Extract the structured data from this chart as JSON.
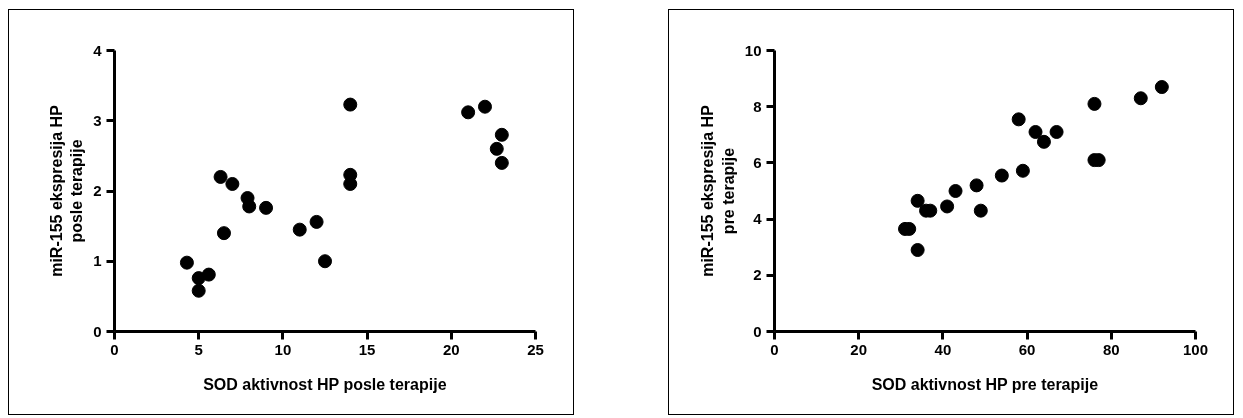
{
  "chart_data": [
    {
      "type": "scatter",
      "xlabel": "SOD aktivnost HP posle terapije",
      "ylabel": "miR-155 ekspresija HP\nposle terapije",
      "marker": "circle",
      "grid": false,
      "xlim": [
        0,
        25
      ],
      "ylim": [
        0,
        4
      ],
      "xticks": [
        0,
        5,
        10,
        15,
        20,
        25
      ],
      "yticks": [
        0,
        1,
        2,
        3,
        4
      ],
      "series": [
        {
          "color": "#000000",
          "x": [
            4.3,
            5,
            5.6,
            5,
            6.3,
            7,
            6.5,
            7.9,
            8,
            9,
            11,
            12,
            12.5,
            14,
            14,
            14,
            21,
            22,
            22.7,
            23,
            23
          ],
          "values": [
            0.98,
            0.76,
            0.81,
            0.58,
            2.2,
            2.1,
            1.4,
            1.9,
            1.78,
            1.76,
            1.45,
            1.56,
            1.0,
            3.23,
            2.23,
            2.1,
            3.12,
            3.2,
            2.6,
            2.8,
            2.4
          ]
        }
      ]
    },
    {
      "type": "scatter",
      "xlabel": "SOD aktivnost HP pre terapije",
      "ylabel": "miR-155 ekspresija HP\npre terapije",
      "marker": "circle",
      "grid": false,
      "xlim": [
        0,
        100
      ],
      "ylim": [
        0,
        10
      ],
      "xticks": [
        0,
        20,
        40,
        60,
        80,
        100
      ],
      "yticks": [
        0,
        2,
        4,
        6,
        8,
        10
      ],
      "series": [
        {
          "color": "#000000",
          "x": [
            31,
            32,
            34,
            34,
            36,
            37,
            41,
            43,
            48,
            49,
            54,
            58,
            59,
            62,
            64,
            67,
            76,
            76,
            77,
            87,
            92
          ],
          "values": [
            3.65,
            3.65,
            4.65,
            2.9,
            4.3,
            4.3,
            4.45,
            5.0,
            5.2,
            4.3,
            5.55,
            7.55,
            5.72,
            7.1,
            6.75,
            7.1,
            8.1,
            6.1,
            6.1,
            8.3,
            8.7
          ]
        }
      ]
    }
  ]
}
